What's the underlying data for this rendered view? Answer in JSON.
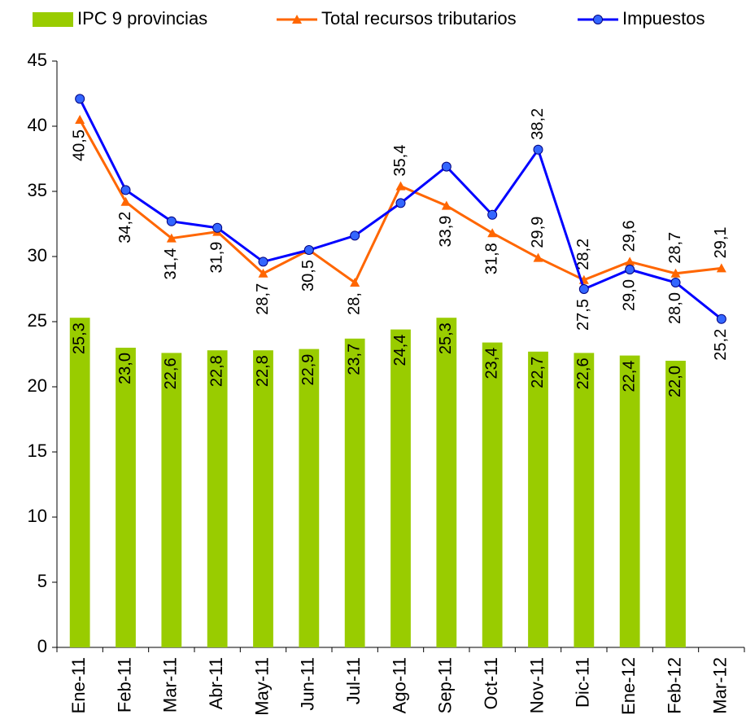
{
  "chart_data": {
    "type": "bar-line",
    "categories": [
      "Ene-11",
      "Feb-11",
      "Mar-11",
      "Abr-11",
      "May-11",
      "Jun-11",
      "Jul-11",
      "Ago-11",
      "Sep-11",
      "Oct-11",
      "Nov-11",
      "Dic-11",
      "Ene-12",
      "Feb-12",
      "Mar-12"
    ],
    "series": [
      {
        "name": "IPC 9 provincias",
        "type": "bar",
        "color": "#99cc00",
        "values": [
          25.3,
          23.0,
          22.6,
          22.8,
          22.8,
          22.9,
          23.7,
          24.4,
          25.3,
          23.4,
          22.7,
          22.6,
          22.4,
          22.0,
          null
        ],
        "value_labels": [
          "25,3",
          "23,0",
          "22,6",
          "22,8",
          "22,8",
          "22,9",
          "23,7",
          "24,4",
          "25,3",
          "23,4",
          "22,7",
          "22,6",
          "22,4",
          "22,0",
          null
        ]
      },
      {
        "name": "Total recursos tributarios",
        "type": "line",
        "marker": "triangle",
        "color": "#ff6600",
        "values": [
          40.5,
          34.2,
          31.4,
          31.9,
          28.7,
          30.5,
          28.0,
          35.4,
          33.9,
          31.8,
          29.9,
          28.2,
          29.6,
          28.7,
          29.1
        ],
        "value_labels": [
          "40,5",
          "34,2",
          "31,4",
          "31,9",
          "28,7",
          "30,5",
          "28,",
          "35,4",
          "33,9",
          "31,8",
          "29,9",
          "28,2",
          "29,6",
          "28,7",
          "29,1"
        ]
      },
      {
        "name": "Impuestos",
        "type": "line",
        "marker": "circle",
        "color": "#0000ff",
        "values": [
          42.1,
          35.1,
          32.7,
          32.2,
          29.6,
          30.5,
          31.6,
          34.1,
          36.9,
          33.2,
          38.2,
          27.5,
          29.0,
          28.0,
          25.2
        ],
        "value_labels": [
          null,
          null,
          null,
          null,
          null,
          null,
          null,
          null,
          null,
          null,
          "38,2",
          "27,5",
          "29,0",
          "28,0",
          "25,2"
        ]
      }
    ],
    "ylim": [
      0,
      45
    ],
    "yticks": [
      0,
      5,
      10,
      15,
      20,
      25,
      30,
      35,
      40,
      45
    ],
    "grid": false
  }
}
